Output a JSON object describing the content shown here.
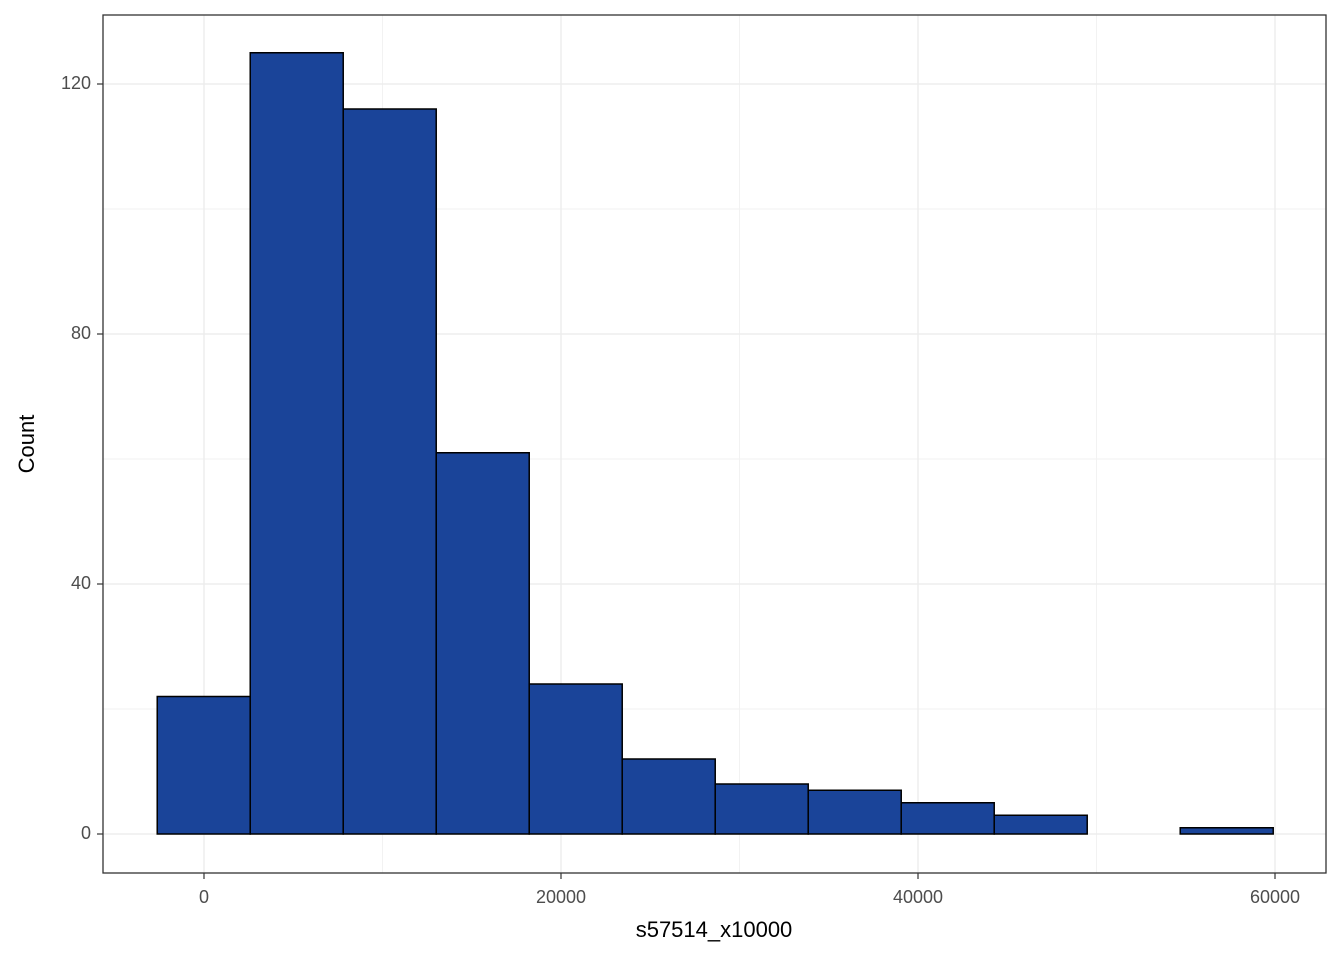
{
  "chart_data": {
    "type": "histogram",
    "x_label": "s57514_x10000",
    "y_label": "Count",
    "bins": [
      -2620,
      2590,
      7800,
      13010,
      18220,
      23430,
      28640,
      33850,
      39060,
      44270,
      49480,
      54690,
      59900
    ],
    "counts": [
      22,
      125,
      116,
      61,
      24,
      12,
      8,
      7,
      5,
      3,
      0,
      1
    ],
    "color": "#1a4499",
    "edgecolor": "#000000",
    "xlim": [
      -5658,
      62857
    ],
    "ylim": [
      -6.24,
      131.04
    ],
    "xticks": [
      0,
      20000,
      40000,
      60000
    ],
    "yticks": [
      0,
      40,
      80,
      120
    ],
    "grid": true
  }
}
